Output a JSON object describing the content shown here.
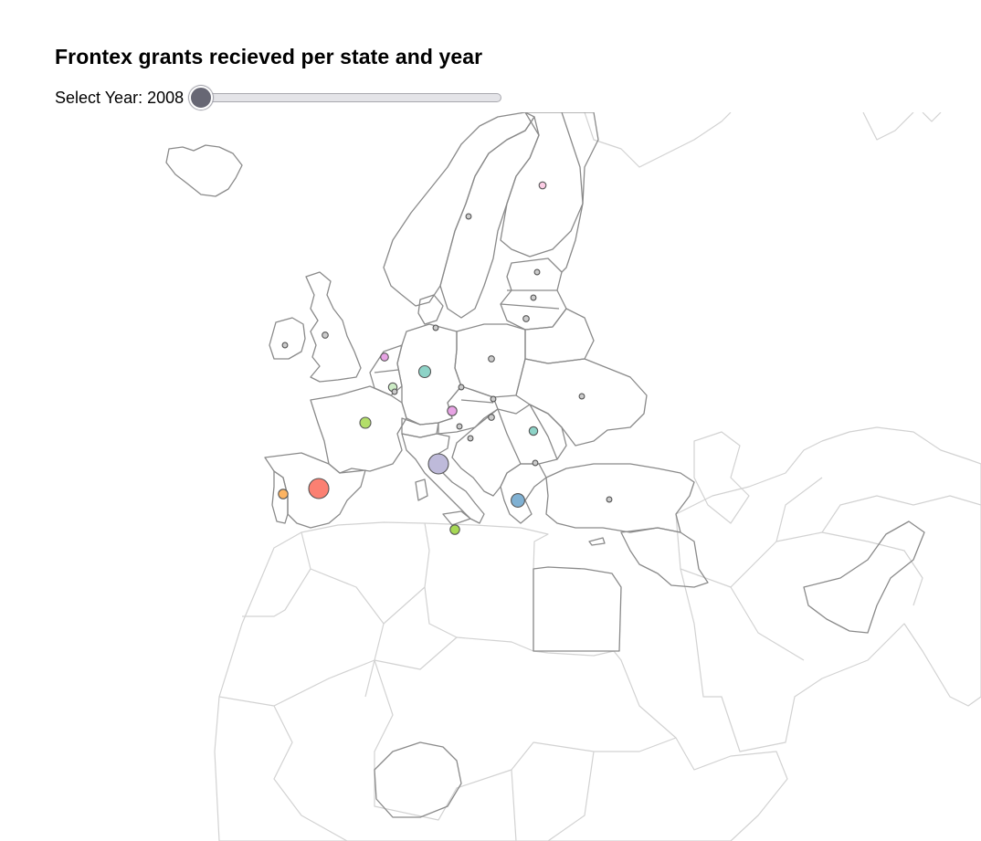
{
  "title": "Frontex grants recieved per state and year",
  "slider": {
    "label": "Select Year:",
    "value": "2008",
    "min": 2008,
    "max": 2022,
    "thumb_color": "#676774"
  },
  "colors": {
    "eu_border": "#8a8a8a",
    "non_eu_border": "#d2d2d2",
    "marker_stroke": "#555555"
  },
  "grants": [
    {
      "state": "Spain",
      "relative_size": 1.0,
      "color": "#fb8072"
    },
    {
      "state": "Italy",
      "relative_size": 1.0,
      "color": "#bebada"
    },
    {
      "state": "Greece",
      "relative_size": 0.6,
      "color": "#80b1d3"
    },
    {
      "state": "Germany",
      "relative_size": 0.5,
      "color": "#8dd3c7"
    },
    {
      "state": "France",
      "relative_size": 0.45,
      "color": "#b3de69"
    },
    {
      "state": "Portugal",
      "relative_size": 0.35,
      "color": "#fdb462"
    },
    {
      "state": "Malta",
      "relative_size": 0.35,
      "color": "#a6d854"
    },
    {
      "state": "Austria",
      "relative_size": 0.35,
      "color": "#e7a3e4"
    },
    {
      "state": "Romania",
      "relative_size": 0.3,
      "color": "#8dd3c7"
    },
    {
      "state": "Belgium",
      "relative_size": 0.3,
      "color": "#ccebc5"
    },
    {
      "state": "Netherlands",
      "relative_size": 0.25,
      "color": "#e7a3e4"
    },
    {
      "state": "Finland",
      "relative_size": 0.2,
      "color": "#fccde5"
    },
    {
      "state": "Sweden",
      "relative_size": 0.1,
      "color": "#cccccc"
    },
    {
      "state": "Estonia",
      "relative_size": 0.1,
      "color": "#cccccc"
    },
    {
      "state": "Latvia",
      "relative_size": 0.1,
      "color": "#cccccc"
    },
    {
      "state": "Lithuania",
      "relative_size": 0.15,
      "color": "#cccccc"
    },
    {
      "state": "Poland",
      "relative_size": 0.15,
      "color": "#cccccc"
    },
    {
      "state": "Czechia",
      "relative_size": 0.1,
      "color": "#cccccc"
    },
    {
      "state": "Slovakia",
      "relative_size": 0.1,
      "color": "#cccccc"
    },
    {
      "state": "Hungary",
      "relative_size": 0.15,
      "color": "#cccccc"
    },
    {
      "state": "Slovenia",
      "relative_size": 0.1,
      "color": "#cccccc"
    },
    {
      "state": "Croatia",
      "relative_size": 0.1,
      "color": "#cccccc"
    },
    {
      "state": "Bulgaria",
      "relative_size": 0.1,
      "color": "#cccccc"
    },
    {
      "state": "Cyprus",
      "relative_size": 0.1,
      "color": "#cccccc"
    },
    {
      "state": "Ireland",
      "relative_size": 0.1,
      "color": "#cccccc"
    },
    {
      "state": "United Kingdom",
      "relative_size": 0.15,
      "color": "#cccccc"
    },
    {
      "state": "Denmark",
      "relative_size": 0.1,
      "color": "#cccccc"
    },
    {
      "state": "Luxembourg",
      "relative_size": 0.1,
      "color": "#cccccc"
    },
    {
      "state": "Turkey",
      "relative_size": 0.1,
      "color": "#cccccc"
    }
  ]
}
